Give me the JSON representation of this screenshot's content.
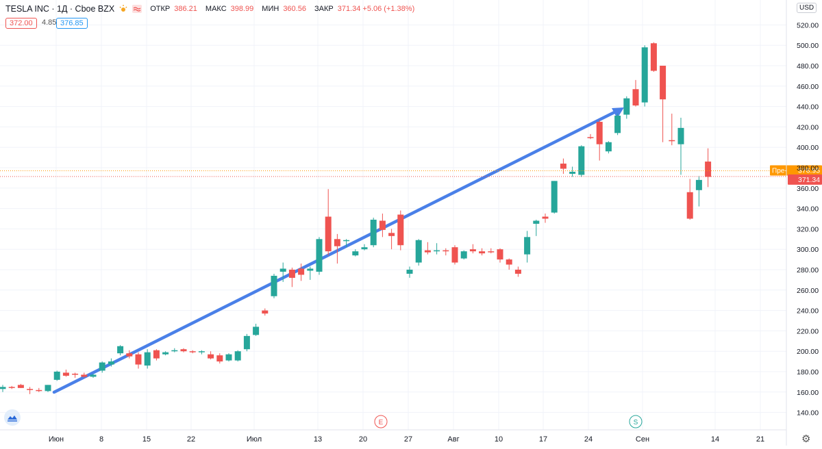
{
  "legend": {
    "symbol": "TESLA INC · 1Д · Cboe BZX",
    "open_label": "ОТКР",
    "open_value": "386.21",
    "high_label": "МАКС",
    "high_value": "398.99",
    "low_label": "МИН",
    "low_value": "360.56",
    "close_label": "ЗАКР",
    "close_value": "371.34 +5.06 (+1.38%)"
  },
  "quote": {
    "bid": "372.00",
    "spread": "4.85",
    "ask": "376.85"
  },
  "currency": "USD",
  "colors": {
    "up": "#26a69a",
    "down": "#ef5350",
    "arrow": "#4a80e8",
    "prev_close_line": "#ff9800",
    "last_line": "#ef5350"
  },
  "chart_data": {
    "type": "candlestick",
    "y_ticks": [
      140,
      160,
      180,
      200,
      220,
      240,
      260,
      280,
      300,
      320,
      340,
      360,
      380,
      400,
      420,
      440,
      460,
      480,
      500,
      520
    ],
    "y_tick_labels": [
      "140.00",
      "160.00",
      "180.00",
      "200.00",
      "220.00",
      "240.00",
      "260.00",
      "280.00",
      "300.00",
      "320.00",
      "340.00",
      "360.00",
      "380.00",
      "400.00",
      "420.00",
      "440.00",
      "460.00",
      "480.00",
      "500.00",
      "520.00"
    ],
    "x_tick_labels": [
      "Июн",
      "8",
      "15",
      "22",
      "Июл",
      "13",
      "20",
      "27",
      "Авг",
      "10",
      "17",
      "24",
      "Сен",
      "14",
      "21"
    ],
    "event_markers": [
      "E",
      "S"
    ],
    "price_labels": [
      {
        "text": "Пре-",
        "value": "376.95",
        "color": "#ff9800"
      },
      {
        "text": "",
        "value": "371.34",
        "color": "#ef5350"
      }
    ],
    "candles": [
      {
        "o": 163,
        "h": 167,
        "l": 160,
        "c": 165
      },
      {
        "o": 165,
        "h": 166,
        "l": 163,
        "c": 164
      },
      {
        "o": 167,
        "h": 168,
        "l": 164,
        "c": 164
      },
      {
        "o": 163,
        "h": 165,
        "l": 158,
        "c": 162
      },
      {
        "o": 162,
        "h": 164,
        "l": 160,
        "c": 161
      },
      {
        "o": 161,
        "h": 167,
        "l": 160,
        "c": 167
      },
      {
        "o": 172,
        "h": 181,
        "l": 171,
        "c": 180
      },
      {
        "o": 179,
        "h": 182,
        "l": 175,
        "c": 176
      },
      {
        "o": 178,
        "h": 179,
        "l": 174,
        "c": 177
      },
      {
        "o": 177,
        "h": 179,
        "l": 174,
        "c": 175
      },
      {
        "o": 175,
        "h": 178,
        "l": 174,
        "c": 177
      },
      {
        "o": 181,
        "h": 190,
        "l": 179,
        "c": 189
      },
      {
        "o": 187,
        "h": 193,
        "l": 185,
        "c": 190
      },
      {
        "o": 198,
        "h": 206,
        "l": 196,
        "c": 205
      },
      {
        "o": 198,
        "h": 201,
        "l": 193,
        "c": 195
      },
      {
        "o": 197,
        "h": 199,
        "l": 183,
        "c": 187
      },
      {
        "o": 186,
        "h": 202,
        "l": 183,
        "c": 199
      },
      {
        "o": 201,
        "h": 202,
        "l": 191,
        "c": 193
      },
      {
        "o": 197,
        "h": 200,
        "l": 196,
        "c": 199
      },
      {
        "o": 201,
        "h": 203,
        "l": 199,
        "c": 201
      },
      {
        "o": 202,
        "h": 203,
        "l": 199,
        "c": 200
      },
      {
        "o": 200,
        "h": 201,
        "l": 198,
        "c": 199
      },
      {
        "o": 200,
        "h": 201,
        "l": 197,
        "c": 200
      },
      {
        "o": 197,
        "h": 200,
        "l": 192,
        "c": 193
      },
      {
        "o": 196,
        "h": 198,
        "l": 188,
        "c": 190
      },
      {
        "o": 191,
        "h": 198,
        "l": 190,
        "c": 197
      },
      {
        "o": 191,
        "h": 201,
        "l": 190,
        "c": 200
      },
      {
        "o": 202,
        "h": 217,
        "l": 200,
        "c": 215
      },
      {
        "o": 216,
        "h": 227,
        "l": 215,
        "c": 224
      },
      {
        "o": 240,
        "h": 242,
        "l": 235,
        "c": 237
      },
      {
        "o": 254,
        "h": 276,
        "l": 252,
        "c": 274
      },
      {
        "o": 278,
        "h": 287,
        "l": 268,
        "c": 281
      },
      {
        "o": 280,
        "h": 282,
        "l": 263,
        "c": 272
      },
      {
        "o": 281,
        "h": 286,
        "l": 269,
        "c": 275
      },
      {
        "o": 279,
        "h": 283,
        "l": 270,
        "c": 281
      },
      {
        "o": 278,
        "h": 312,
        "l": 275,
        "c": 310
      },
      {
        "o": 332,
        "h": 359,
        "l": 294,
        "c": 298
      },
      {
        "o": 310,
        "h": 315,
        "l": 286,
        "c": 303
      },
      {
        "o": 309,
        "h": 310,
        "l": 302,
        "c": 309
      },
      {
        "o": 294,
        "h": 300,
        "l": 293,
        "c": 298
      },
      {
        "o": 300,
        "h": 305,
        "l": 299,
        "c": 302
      },
      {
        "o": 304,
        "h": 331,
        "l": 302,
        "c": 329
      },
      {
        "o": 328,
        "h": 335,
        "l": 312,
        "c": 319
      },
      {
        "o": 316,
        "h": 320,
        "l": 300,
        "c": 313
      },
      {
        "o": 334,
        "h": 338,
        "l": 299,
        "c": 304
      },
      {
        "o": 276,
        "h": 283,
        "l": 272,
        "c": 280
      },
      {
        "o": 287,
        "h": 310,
        "l": 284,
        "c": 309
      },
      {
        "o": 299,
        "h": 307,
        "l": 295,
        "c": 297
      },
      {
        "o": 299,
        "h": 306,
        "l": 295,
        "c": 299
      },
      {
        "o": 299,
        "h": 301,
        "l": 294,
        "c": 298
      },
      {
        "o": 302,
        "h": 304,
        "l": 285,
        "c": 287
      },
      {
        "o": 291,
        "h": 299,
        "l": 290,
        "c": 298
      },
      {
        "o": 300,
        "h": 305,
        "l": 296,
        "c": 298
      },
      {
        "o": 298,
        "h": 301,
        "l": 294,
        "c": 296
      },
      {
        "o": 298,
        "h": 301,
        "l": 296,
        "c": 297
      },
      {
        "o": 300,
        "h": 301,
        "l": 287,
        "c": 290
      },
      {
        "o": 290,
        "h": 291,
        "l": 280,
        "c": 285
      },
      {
        "o": 280,
        "h": 283,
        "l": 273,
        "c": 276
      },
      {
        "o": 295,
        "h": 318,
        "l": 287,
        "c": 312
      },
      {
        "o": 325,
        "h": 329,
        "l": 313,
        "c": 328
      },
      {
        "o": 332,
        "h": 335,
        "l": 326,
        "c": 330
      },
      {
        "o": 336,
        "h": 367,
        "l": 335,
        "c": 367
      },
      {
        "o": 384,
        "h": 389,
        "l": 374,
        "c": 379
      },
      {
        "o": 374,
        "h": 381,
        "l": 371,
        "c": 376
      },
      {
        "o": 373,
        "h": 402,
        "l": 371,
        "c": 401
      },
      {
        "o": 410,
        "h": 413,
        "l": 408,
        "c": 409
      },
      {
        "o": 425,
        "h": 427,
        "l": 387,
        "c": 403
      },
      {
        "o": 396,
        "h": 406,
        "l": 394,
        "c": 405
      },
      {
        "o": 414,
        "h": 433,
        "l": 412,
        "c": 431
      },
      {
        "o": 432,
        "h": 450,
        "l": 428,
        "c": 448
      },
      {
        "o": 457,
        "h": 466,
        "l": 440,
        "c": 441
      },
      {
        "o": 444,
        "h": 500,
        "l": 440,
        "c": 498
      },
      {
        "o": 502,
        "h": 503,
        "l": 474,
        "c": 475
      },
      {
        "o": 480,
        "h": 480,
        "l": 405,
        "c": 447
      },
      {
        "o": 407,
        "h": 433,
        "l": 402,
        "c": 406
      },
      {
        "o": 403,
        "h": 429,
        "l": 373,
        "c": 419
      },
      {
        "o": 356,
        "h": 369,
        "l": 329,
        "c": 330
      },
      {
        "o": 358,
        "h": 372,
        "l": 342,
        "c": 368
      },
      {
        "o": 386,
        "h": 399,
        "l": 361,
        "c": 371
      }
    ]
  }
}
